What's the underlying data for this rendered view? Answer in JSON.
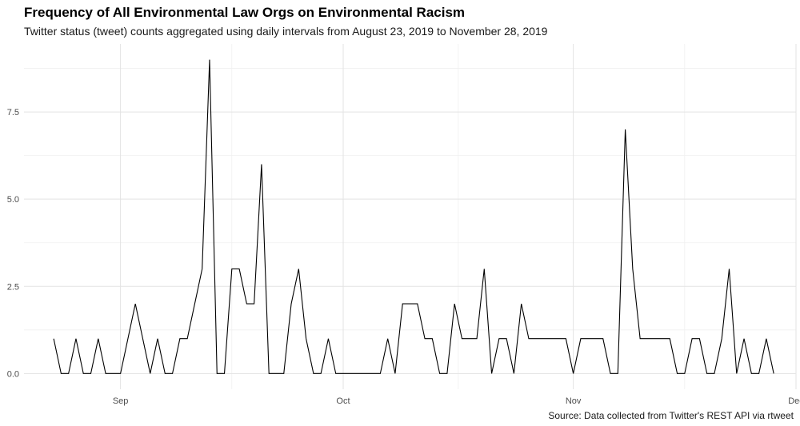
{
  "chart_data": {
    "type": "line",
    "title": "Frequency of All Environmental Law Orgs on Environmental Racism",
    "subtitle": "Twitter status (tweet) counts aggregated using daily intervals from August 23, 2019 to November 28, 2019",
    "caption": "Source: Data collected from Twitter's REST API via rtweet",
    "xlabel": "",
    "ylabel": "",
    "x_start": "2019-08-23",
    "x_end": "2019-11-28",
    "xlim": [
      "2019-08-19",
      "2019-12-01"
    ],
    "ylim": [
      -0.45,
      9.45
    ],
    "x_ticks": [
      {
        "date": "2019-09-01",
        "label": "Sep"
      },
      {
        "date": "2019-10-01",
        "label": "Oct"
      },
      {
        "date": "2019-11-01",
        "label": "Nov"
      },
      {
        "date": "2019-12-01",
        "label": "Dec"
      }
    ],
    "y_ticks": [
      {
        "value": 0,
        "label": "0.0"
      },
      {
        "value": 2.5,
        "label": "2.5"
      },
      {
        "value": 5,
        "label": "5.0"
      },
      {
        "value": 7.5,
        "label": "7.5"
      }
    ],
    "grid": true,
    "line_color": "#000000",
    "series": [
      {
        "x": [
          "2019-08-23",
          "2019-08-24",
          "2019-08-25",
          "2019-08-26",
          "2019-08-27",
          "2019-08-28",
          "2019-08-29",
          "2019-08-30",
          "2019-08-31",
          "2019-09-01",
          "2019-09-02",
          "2019-09-03",
          "2019-09-04",
          "2019-09-05",
          "2019-09-06",
          "2019-09-07",
          "2019-09-08",
          "2019-09-09",
          "2019-09-10",
          "2019-09-11",
          "2019-09-12",
          "2019-09-13",
          "2019-09-14",
          "2019-09-15",
          "2019-09-16",
          "2019-09-17",
          "2019-09-18",
          "2019-09-19",
          "2019-09-20",
          "2019-09-21",
          "2019-09-22",
          "2019-09-23",
          "2019-09-24",
          "2019-09-25",
          "2019-09-26",
          "2019-09-27",
          "2019-09-28",
          "2019-09-29",
          "2019-09-30",
          "2019-10-01",
          "2019-10-02",
          "2019-10-03",
          "2019-10-04",
          "2019-10-05",
          "2019-10-06",
          "2019-10-07",
          "2019-10-08",
          "2019-10-09",
          "2019-10-10",
          "2019-10-11",
          "2019-10-12",
          "2019-10-13",
          "2019-10-14",
          "2019-10-15",
          "2019-10-16",
          "2019-10-17",
          "2019-10-18",
          "2019-10-19",
          "2019-10-20",
          "2019-10-21",
          "2019-10-22",
          "2019-10-23",
          "2019-10-24",
          "2019-10-25",
          "2019-10-26",
          "2019-10-27",
          "2019-10-28",
          "2019-10-29",
          "2019-10-30",
          "2019-10-31",
          "2019-11-01",
          "2019-11-02",
          "2019-11-03",
          "2019-11-04",
          "2019-11-05",
          "2019-11-06",
          "2019-11-07",
          "2019-11-08",
          "2019-11-09",
          "2019-11-10",
          "2019-11-11",
          "2019-11-12",
          "2019-11-13",
          "2019-11-14",
          "2019-11-15",
          "2019-11-16",
          "2019-11-17",
          "2019-11-18",
          "2019-11-19",
          "2019-11-20",
          "2019-11-21",
          "2019-11-22",
          "2019-11-23",
          "2019-11-24",
          "2019-11-25",
          "2019-11-26",
          "2019-11-27",
          "2019-11-28"
        ],
        "values": [
          1,
          0,
          0,
          1,
          0,
          0,
          1,
          0,
          0,
          0,
          1,
          2,
          1,
          0,
          1,
          0,
          0,
          1,
          1,
          2,
          3,
          9,
          0,
          0,
          3,
          3,
          2,
          2,
          6,
          0,
          0,
          0,
          2,
          3,
          1,
          0,
          0,
          1,
          0,
          0,
          0,
          0,
          0,
          0,
          0,
          1,
          0,
          2,
          2,
          2,
          1,
          1,
          0,
          0,
          2,
          1,
          1,
          1,
          3,
          0,
          1,
          1,
          0,
          2,
          1,
          1,
          1,
          1,
          1,
          1,
          0,
          1,
          1,
          1,
          1,
          0,
          0,
          7,
          3,
          1,
          1,
          1,
          1,
          1,
          0,
          0,
          1,
          1,
          0,
          0,
          1,
          3,
          0,
          1,
          0,
          0,
          1,
          0
        ]
      }
    ]
  }
}
